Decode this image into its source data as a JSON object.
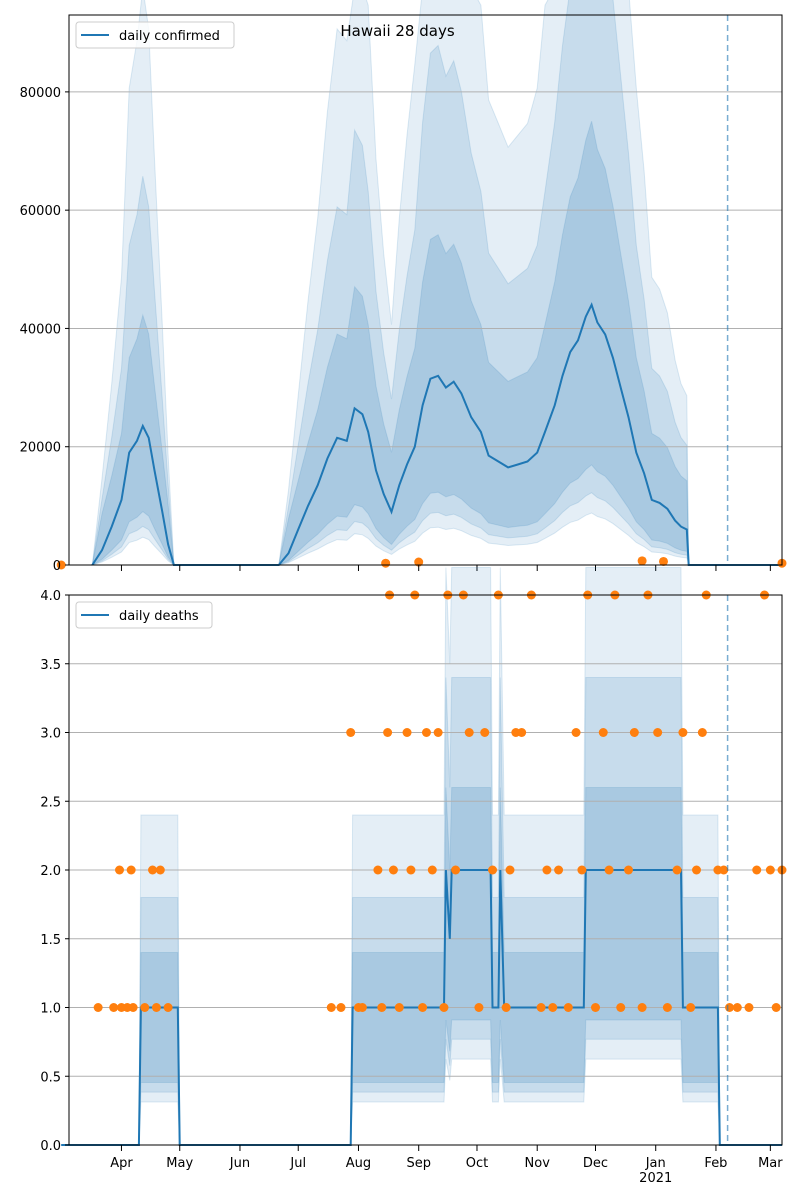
{
  "chart_data": [
    {
      "type": "line",
      "title": "Hawaii 28 days",
      "ylim": [
        0,
        93000
      ],
      "yticks": [
        0,
        20000,
        40000,
        60000,
        80000
      ],
      "grid": "y",
      "legend": {
        "placement": "top-left",
        "entries": [
          "daily confirmed"
        ]
      },
      "marker_vline": "2021-02-07",
      "series": [
        {
          "name": "daily confirmed",
          "points": [
            [
              "2020-03-17",
              0
            ],
            [
              "2020-03-22",
              2500
            ],
            [
              "2020-03-27",
              6500
            ],
            [
              "2020-04-01",
              11000
            ],
            [
              "2020-04-05",
              19000
            ],
            [
              "2020-04-09",
              21000
            ],
            [
              "2020-04-12",
              23500
            ],
            [
              "2020-04-15",
              21500
            ],
            [
              "2020-04-18",
              16000
            ],
            [
              "2020-04-22",
              9000
            ],
            [
              "2020-04-25",
              3500
            ],
            [
              "2020-04-28",
              0
            ],
            [
              "2020-06-21",
              0
            ],
            [
              "2020-06-26",
              2000
            ],
            [
              "2020-07-01",
              6000
            ],
            [
              "2020-07-06",
              10000
            ],
            [
              "2020-07-11",
              13500
            ],
            [
              "2020-07-16",
              18000
            ],
            [
              "2020-07-21",
              21500
            ],
            [
              "2020-07-26",
              21000
            ],
            [
              "2020-07-30",
              26500
            ],
            [
              "2020-08-03",
              25500
            ],
            [
              "2020-08-06",
              22500
            ],
            [
              "2020-08-10",
              16000
            ],
            [
              "2020-08-14",
              12000
            ],
            [
              "2020-08-18",
              9000
            ],
            [
              "2020-08-22",
              13500
            ],
            [
              "2020-08-26",
              17000
            ],
            [
              "2020-08-30",
              20000
            ],
            [
              "2020-09-03",
              27000
            ],
            [
              "2020-09-07",
              31500
            ],
            [
              "2020-09-11",
              32000
            ],
            [
              "2020-09-15",
              30000
            ],
            [
              "2020-09-19",
              31000
            ],
            [
              "2020-09-23",
              29000
            ],
            [
              "2020-09-28",
              25000
            ],
            [
              "2020-10-03",
              22500
            ],
            [
              "2020-10-07",
              18500
            ],
            [
              "2020-10-12",
              17500
            ],
            [
              "2020-10-17",
              16500
            ],
            [
              "2020-10-22",
              17000
            ],
            [
              "2020-10-27",
              17500
            ],
            [
              "2020-11-01",
              19000
            ],
            [
              "2020-11-05",
              22500
            ],
            [
              "2020-11-10",
              27000
            ],
            [
              "2020-11-14",
              32000
            ],
            [
              "2020-11-18",
              36000
            ],
            [
              "2020-11-22",
              38000
            ],
            [
              "2020-11-26",
              42000
            ],
            [
              "2020-11-29",
              44000
            ],
            [
              "2020-12-02",
              41000
            ],
            [
              "2020-12-06",
              39000
            ],
            [
              "2020-12-10",
              35000
            ],
            [
              "2020-12-14",
              30000
            ],
            [
              "2020-12-18",
              25000
            ],
            [
              "2020-12-22",
              19000
            ],
            [
              "2020-12-26",
              15500
            ],
            [
              "2020-12-30",
              11000
            ],
            [
              "2021-01-03",
              10500
            ],
            [
              "2021-01-07",
              9500
            ],
            [
              "2021-01-11",
              7500
            ],
            [
              "2021-01-14",
              6500
            ],
            [
              "2021-01-17",
              6000
            ],
            [
              "2021-01-18",
              0
            ],
            [
              "2021-03-07",
              0
            ]
          ]
        }
      ],
      "observed_points": [
        [
          "2020-03-01",
          0
        ],
        [
          "2020-08-15",
          300
        ],
        [
          "2020-09-01",
          500
        ],
        [
          "2020-12-25",
          700
        ],
        [
          "2021-01-05",
          600
        ],
        [
          "2021-03-07",
          300
        ]
      ]
    },
    {
      "type": "line",
      "ylim": [
        0,
        4
      ],
      "yticks": [
        "0.0",
        "0.5",
        "1.0",
        "1.5",
        "2.0",
        "2.5",
        "3.0",
        "3.5",
        "4.0"
      ],
      "grid": "y",
      "legend": {
        "placement": "top-left",
        "entries": [
          "daily deaths"
        ]
      },
      "marker_vline": "2021-02-07",
      "series": [
        {
          "name": "daily deaths",
          "points": [
            [
              "2020-03-01",
              0
            ],
            [
              "2020-04-10",
              0
            ],
            [
              "2020-04-11",
              1
            ],
            [
              "2020-04-30",
              1
            ],
            [
              "2020-05-01",
              0
            ],
            [
              "2020-07-28",
              0
            ],
            [
              "2020-07-29",
              1
            ],
            [
              "2020-09-14",
              1
            ],
            [
              "2020-09-15",
              2
            ],
            [
              "2020-09-17",
              1.5
            ],
            [
              "2020-09-18",
              2
            ],
            [
              "2020-10-08",
              2
            ],
            [
              "2020-10-09",
              1
            ],
            [
              "2020-10-12",
              1
            ],
            [
              "2020-10-13",
              2
            ],
            [
              "2020-10-15",
              1
            ],
            [
              "2020-11-25",
              1
            ],
            [
              "2020-11-26",
              2
            ],
            [
              "2021-01-14",
              2
            ],
            [
              "2021-01-15",
              1
            ],
            [
              "2021-02-02",
              1
            ],
            [
              "2021-02-03",
              0
            ],
            [
              "2021-03-07",
              0
            ]
          ]
        }
      ],
      "observed_points": [
        [
          "2020-03-20",
          1
        ],
        [
          "2020-03-28",
          1
        ],
        [
          "2020-03-31",
          2
        ],
        [
          "2020-04-01",
          1
        ],
        [
          "2020-04-04",
          1
        ],
        [
          "2020-04-06",
          2
        ],
        [
          "2020-04-07",
          1
        ],
        [
          "2020-04-13",
          1
        ],
        [
          "2020-04-17",
          2
        ],
        [
          "2020-04-19",
          1
        ],
        [
          "2020-04-21",
          2
        ],
        [
          "2020-04-25",
          1
        ],
        [
          "2020-07-18",
          1
        ],
        [
          "2020-07-23",
          1
        ],
        [
          "2020-07-28",
          3
        ],
        [
          "2020-08-01",
          1
        ],
        [
          "2020-08-03",
          1
        ],
        [
          "2020-08-11",
          2
        ],
        [
          "2020-08-13",
          1
        ],
        [
          "2020-08-16",
          3
        ],
        [
          "2020-08-17",
          4
        ],
        [
          "2020-08-19",
          2
        ],
        [
          "2020-08-22",
          1
        ],
        [
          "2020-08-26",
          3
        ],
        [
          "2020-08-28",
          2
        ],
        [
          "2020-08-30",
          4
        ],
        [
          "2020-09-03",
          1
        ],
        [
          "2020-09-05",
          3
        ],
        [
          "2020-09-08",
          2
        ],
        [
          "2020-09-11",
          3
        ],
        [
          "2020-09-14",
          1
        ],
        [
          "2020-09-16",
          4
        ],
        [
          "2020-09-20",
          2
        ],
        [
          "2020-09-24",
          4
        ],
        [
          "2020-09-27",
          3
        ],
        [
          "2020-10-02",
          1
        ],
        [
          "2020-10-05",
          3
        ],
        [
          "2020-10-09",
          2
        ],
        [
          "2020-10-12",
          4
        ],
        [
          "2020-10-16",
          1
        ],
        [
          "2020-10-18",
          2
        ],
        [
          "2020-10-21",
          3
        ],
        [
          "2020-10-24",
          3
        ],
        [
          "2020-10-29",
          4
        ],
        [
          "2020-11-03",
          1
        ],
        [
          "2020-11-06",
          2
        ],
        [
          "2020-11-09",
          1
        ],
        [
          "2020-11-12",
          2
        ],
        [
          "2020-11-17",
          1
        ],
        [
          "2020-11-21",
          3
        ],
        [
          "2020-11-24",
          2
        ],
        [
          "2020-11-27",
          4
        ],
        [
          "2020-12-01",
          1
        ],
        [
          "2020-12-05",
          3
        ],
        [
          "2020-12-08",
          2
        ],
        [
          "2020-12-11",
          4
        ],
        [
          "2020-12-14",
          1
        ],
        [
          "2020-12-18",
          2
        ],
        [
          "2020-12-21",
          3
        ],
        [
          "2020-12-25",
          1
        ],
        [
          "2020-12-28",
          4
        ],
        [
          "2021-01-02",
          3
        ],
        [
          "2021-01-07",
          1
        ],
        [
          "2021-01-12",
          2
        ],
        [
          "2021-01-15",
          3
        ],
        [
          "2021-01-19",
          1
        ],
        [
          "2021-01-22",
          2
        ],
        [
          "2021-01-25",
          3
        ],
        [
          "2021-01-27",
          4
        ],
        [
          "2021-02-02",
          2
        ],
        [
          "2021-02-05",
          2
        ],
        [
          "2021-02-08",
          1
        ],
        [
          "2021-02-12",
          1
        ],
        [
          "2021-02-18",
          1
        ],
        [
          "2021-02-22",
          2
        ],
        [
          "2021-02-26",
          4
        ],
        [
          "2021-03-01",
          2
        ],
        [
          "2021-03-04",
          1
        ],
        [
          "2021-03-07",
          2
        ]
      ]
    }
  ],
  "x_axis": {
    "month_labels": [
      "Apr",
      "May",
      "Jun",
      "Jul",
      "Aug",
      "Sep",
      "Oct",
      "Nov",
      "Dec",
      "Jan",
      "Feb",
      "Mar"
    ],
    "month_starts": [
      "2020-04-01",
      "2020-05-01",
      "2020-06-01",
      "2020-07-01",
      "2020-08-01",
      "2020-09-01",
      "2020-10-01",
      "2020-11-01",
      "2020-12-01",
      "2021-01-01",
      "2021-02-01",
      "2021-03-01"
    ],
    "year_label": "2021",
    "range": [
      "2020-03-05",
      "2021-03-07"
    ]
  },
  "colors": {
    "line": "#1f77b4",
    "observed": "#ff7f0e",
    "band": "#1f77b4",
    "grid": "#b0b0b0"
  }
}
